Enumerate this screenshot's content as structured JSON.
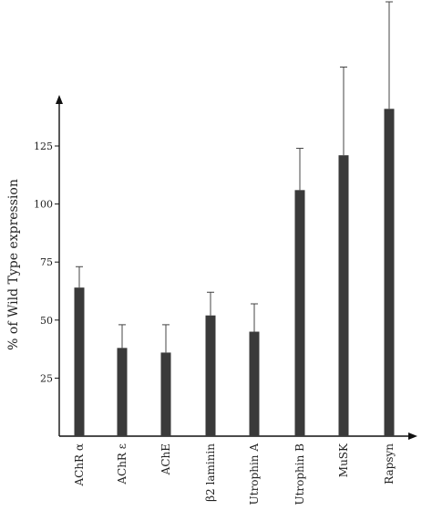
{
  "chart_data": {
    "type": "bar",
    "title": "",
    "xlabel": "",
    "ylabel": "% of Wild Type expression",
    "ylim": [
      0,
      150
    ],
    "yticks": [
      25,
      50,
      75,
      100,
      125
    ],
    "grid": false,
    "categories": [
      "AChR α",
      "AChR ε",
      "AChE",
      "β2 laminin",
      "Utrophin A",
      "Utrophin B",
      "MuSK",
      "Rapsyn"
    ],
    "values": [
      64,
      38,
      36,
      52,
      45,
      106,
      121,
      141
    ],
    "errors": [
      9,
      10,
      12,
      10,
      12,
      18,
      38,
      60
    ],
    "colors": {
      "bar": "#3a3a3a",
      "axis": "#111111",
      "text": "#222222"
    }
  }
}
